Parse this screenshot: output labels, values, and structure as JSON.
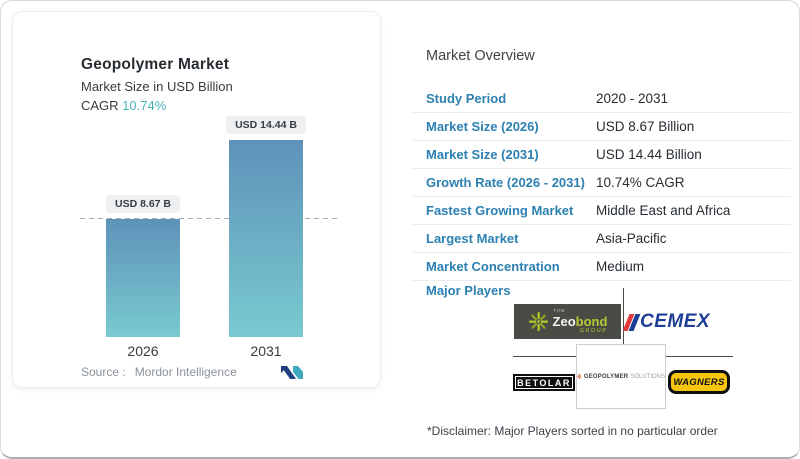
{
  "chart_card": {
    "title": "Geopolymer Market",
    "subtitle": "Market Size in USD Billion",
    "cagr_label": "CAGR",
    "cagr_value": "10.74%",
    "source_label": "Source :",
    "source_value": "Mordor Intelligence"
  },
  "chart_data": {
    "type": "bar",
    "title": "Geopolymer Market",
    "ylabel": "Market Size in USD Billion",
    "categories": [
      "2026",
      "2031"
    ],
    "values": [
      8.67,
      14.44
    ],
    "bar_labels": [
      "USD 8.67 B",
      "USD 14.44 B"
    ],
    "ylim": [
      0,
      14.44
    ],
    "reference_line": 8.67,
    "grid": false,
    "legend": "none"
  },
  "overview": {
    "title": "Market Overview",
    "rows": [
      {
        "label": "Study Period",
        "value": "2020 - 2031"
      },
      {
        "label": "Market Size (2026)",
        "value": "USD 8.67 Billion"
      },
      {
        "label": "Market Size (2031)",
        "value": "USD 14.44 Billion"
      },
      {
        "label": "Growth Rate (2026 - 2031)",
        "value": "10.74% CAGR"
      },
      {
        "label": "Fastest Growing Market",
        "value": "Middle East and Africa"
      },
      {
        "label": "Largest Market",
        "value": "Asia-Pacific"
      },
      {
        "label": "Market Concentration",
        "value": "Medium"
      }
    ],
    "major_players_label": "Major Players",
    "major_players": [
      {
        "name": "The Zeobond Group",
        "logo_text": {
          "the": "THE",
          "zeo": "Zeo",
          "bond": "bond",
          "group": "GROUP"
        }
      },
      {
        "name": "CEMEX",
        "logo_text": "CEMEX"
      },
      {
        "name": "Geopolymer Solutions",
        "logo_text": {
          "word1": "GEOPOLYMER",
          "word2": "SOLUTIONS"
        }
      },
      {
        "name": "Betolar",
        "logo_text": "BETOLAR"
      },
      {
        "name": "Wagners",
        "logo_text": "WAGNERS"
      }
    ],
    "disclaimer": "*Disclaimer: Major Players sorted in no particular order"
  },
  "colors": {
    "label_blue": "#2c80b2",
    "cagr_teal": "#48b2b9",
    "bar_gradient_top": "#5e92b9",
    "bar_gradient_bottom": "#79cad0",
    "zeobond_green": "#b6c931",
    "cemex_navy": "#1c3e96",
    "cemex_red": "#e03a3a",
    "wagners_yellow": "#f5c60d"
  }
}
